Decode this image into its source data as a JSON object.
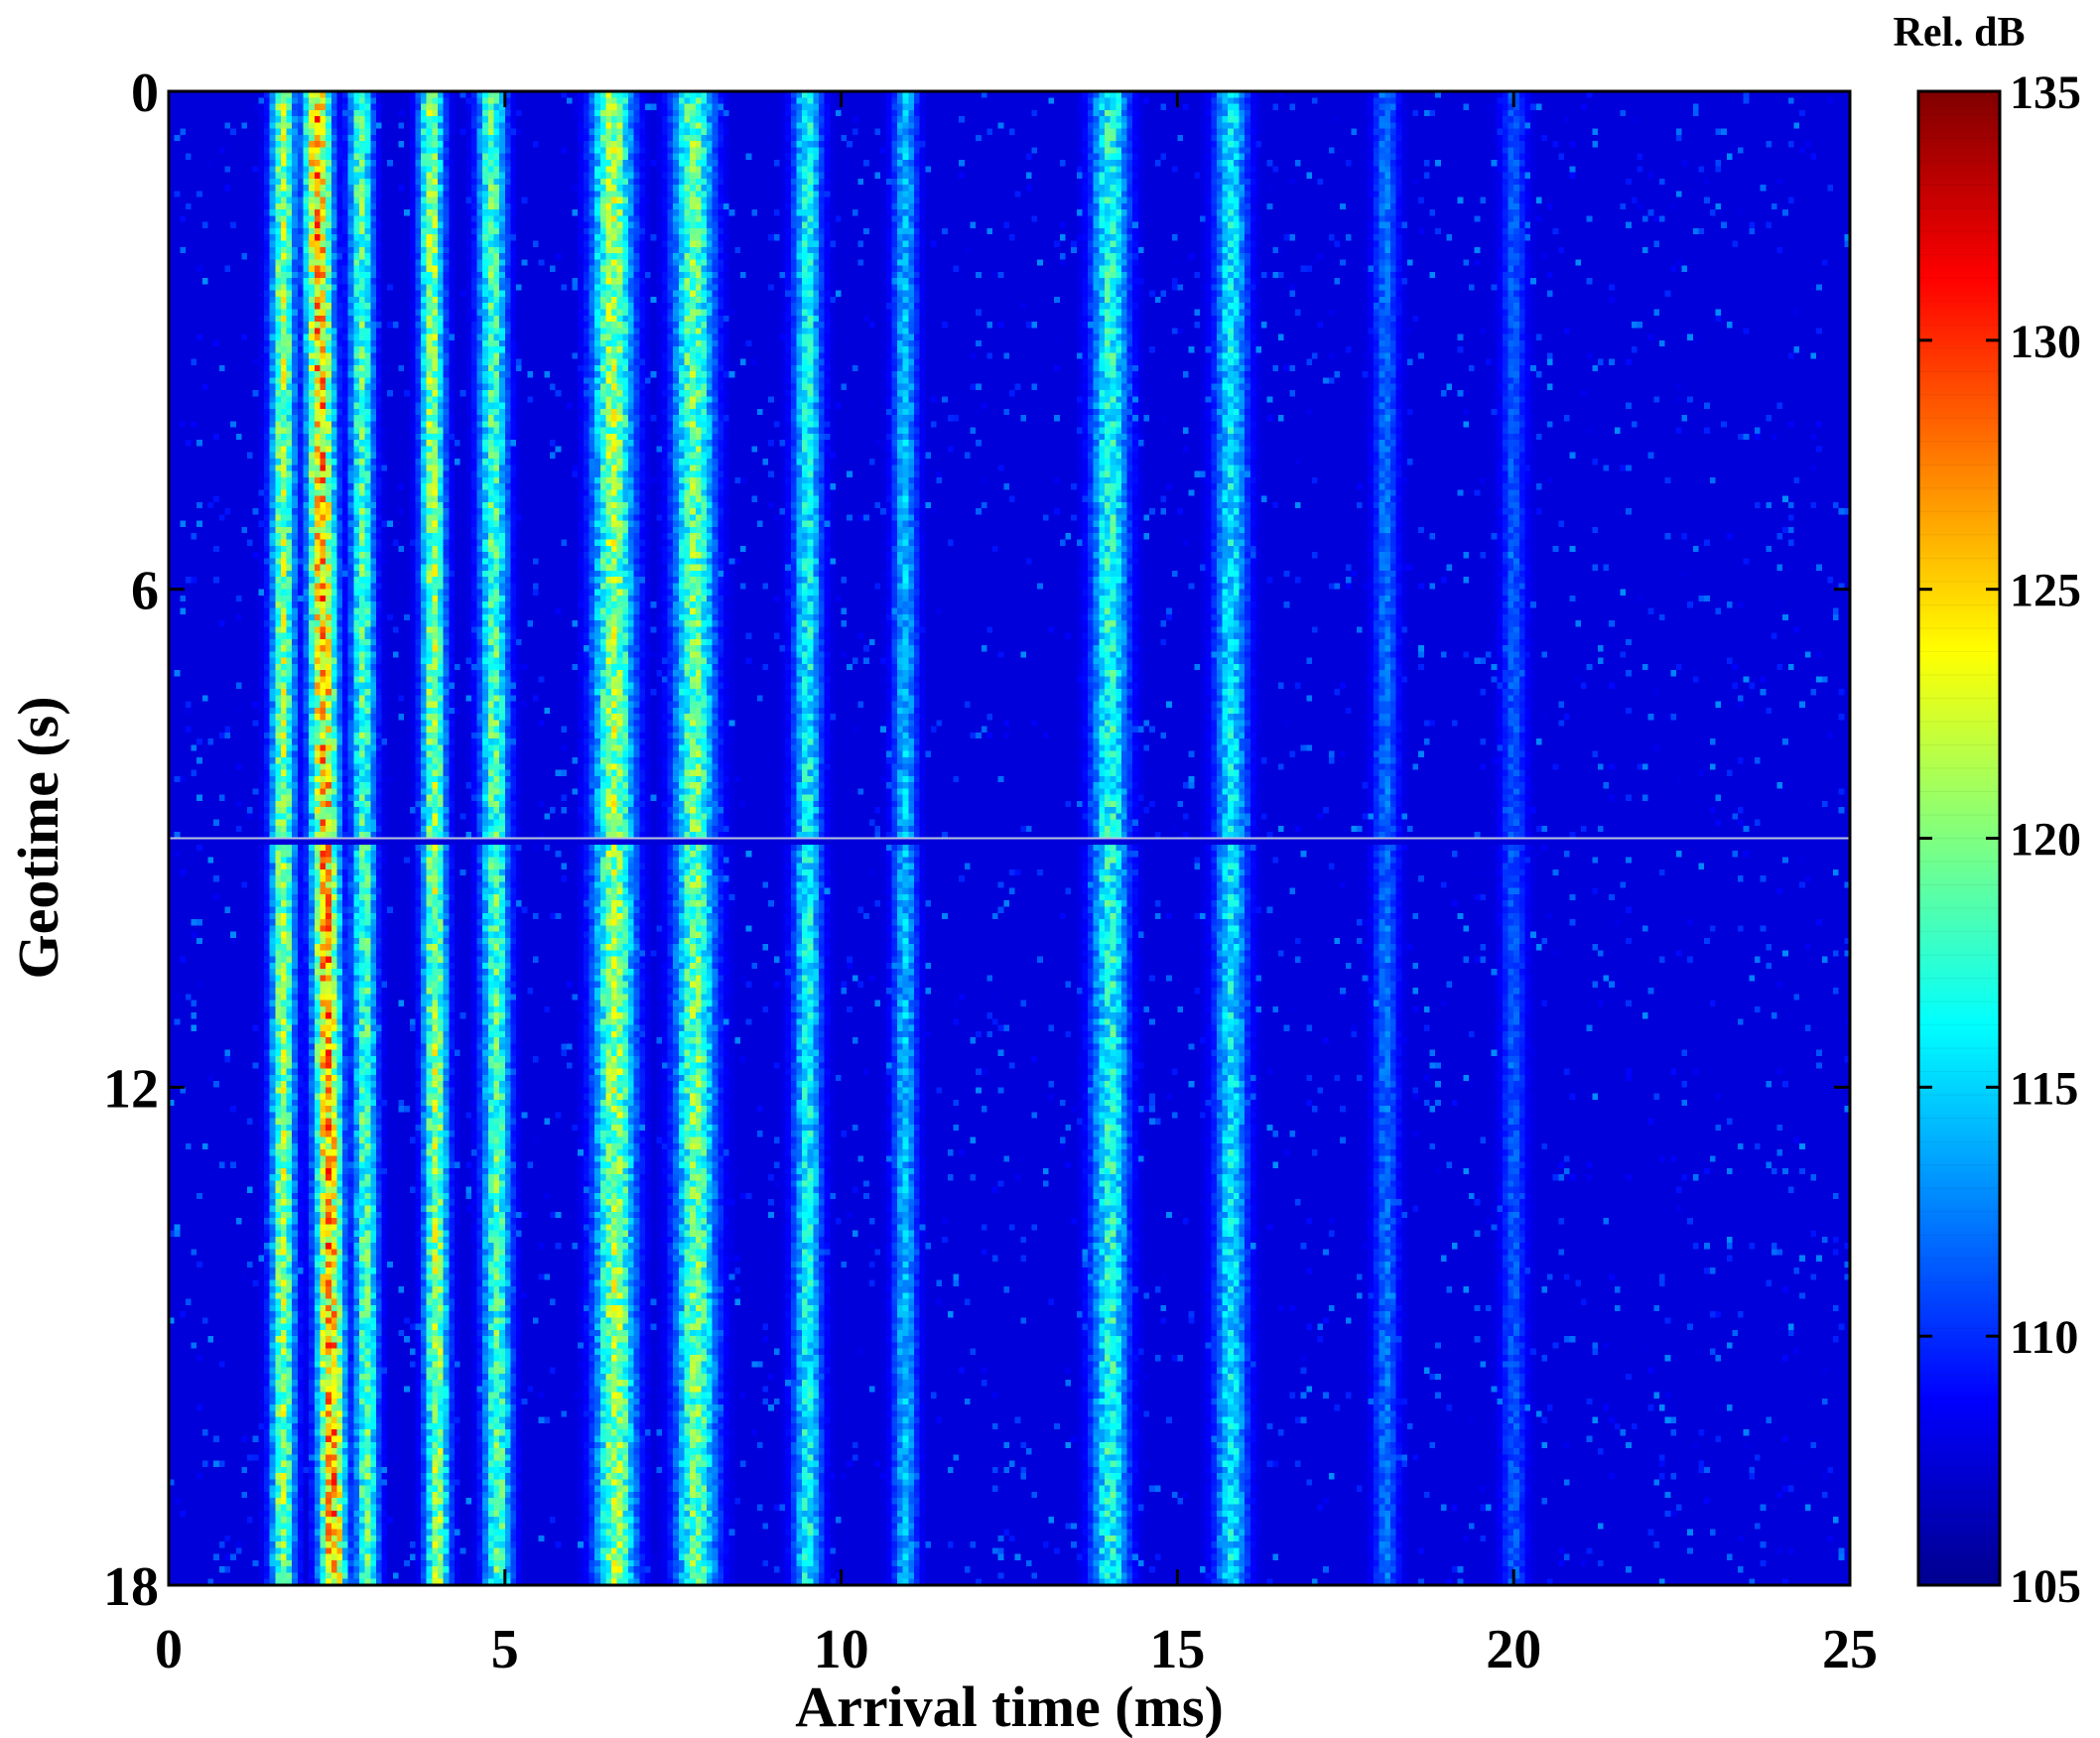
{
  "chart_data": {
    "type": "heatmap",
    "xlabel": "Arrival time (ms)",
    "ylabel": "Geotime (s)",
    "xlim": [
      0,
      25
    ],
    "ylim": [
      0,
      18
    ],
    "y_inverted": true,
    "x_ticks": [
      0,
      5,
      10,
      15,
      20,
      25
    ],
    "y_ticks": [
      0,
      6,
      12,
      18
    ],
    "x_tick_labels": [
      "0",
      "5",
      "10",
      "15",
      "20",
      "25"
    ],
    "y_tick_labels": [
      "0",
      "6",
      "12",
      "18"
    ],
    "colorbar": {
      "title": "Rel. dB",
      "range": [
        105,
        135
      ],
      "ticks": [
        105,
        110,
        115,
        120,
        125,
        130,
        135
      ],
      "tick_labels": [
        "105",
        "110",
        "115",
        "120",
        "125",
        "130",
        "135"
      ],
      "colormap": "jet"
    },
    "background_level_db": 106,
    "gap_line_geotime_s": 9,
    "ridges": [
      {
        "arrival_ms": 1.7,
        "peak_db": 124,
        "width_ms": 0.12,
        "drift_ms": 0.0
      },
      {
        "arrival_ms": 2.2,
        "peak_db": 131,
        "width_ms": 0.14,
        "drift_ms": 0.25
      },
      {
        "arrival_ms": 2.85,
        "peak_db": 121,
        "width_ms": 0.12,
        "drift_ms": 0.1
      },
      {
        "arrival_ms": 3.9,
        "peak_db": 124,
        "width_ms": 0.12,
        "drift_ms": 0.1
      },
      {
        "arrival_ms": 4.8,
        "peak_db": 121,
        "width_ms": 0.14,
        "drift_ms": 0.1
      },
      {
        "arrival_ms": 6.6,
        "peak_db": 124,
        "width_ms": 0.2,
        "drift_ms": 0.05
      },
      {
        "arrival_ms": 7.8,
        "peak_db": 122,
        "width_ms": 0.2,
        "drift_ms": 0.05
      },
      {
        "arrival_ms": 9.5,
        "peak_db": 118,
        "width_ms": 0.14,
        "drift_ms": 0.0
      },
      {
        "arrival_ms": 10.95,
        "peak_db": 115,
        "width_ms": 0.12,
        "drift_ms": 0.0
      },
      {
        "arrival_ms": 14.0,
        "peak_db": 119,
        "width_ms": 0.18,
        "drift_ms": 0.0
      },
      {
        "arrival_ms": 15.8,
        "peak_db": 117,
        "width_ms": 0.16,
        "drift_ms": 0.0
      },
      {
        "arrival_ms": 18.1,
        "peak_db": 112,
        "width_ms": 0.12,
        "drift_ms": 0.0
      },
      {
        "arrival_ms": 20.0,
        "peak_db": 111,
        "width_ms": 0.12,
        "drift_ms": 0.0
      }
    ]
  }
}
